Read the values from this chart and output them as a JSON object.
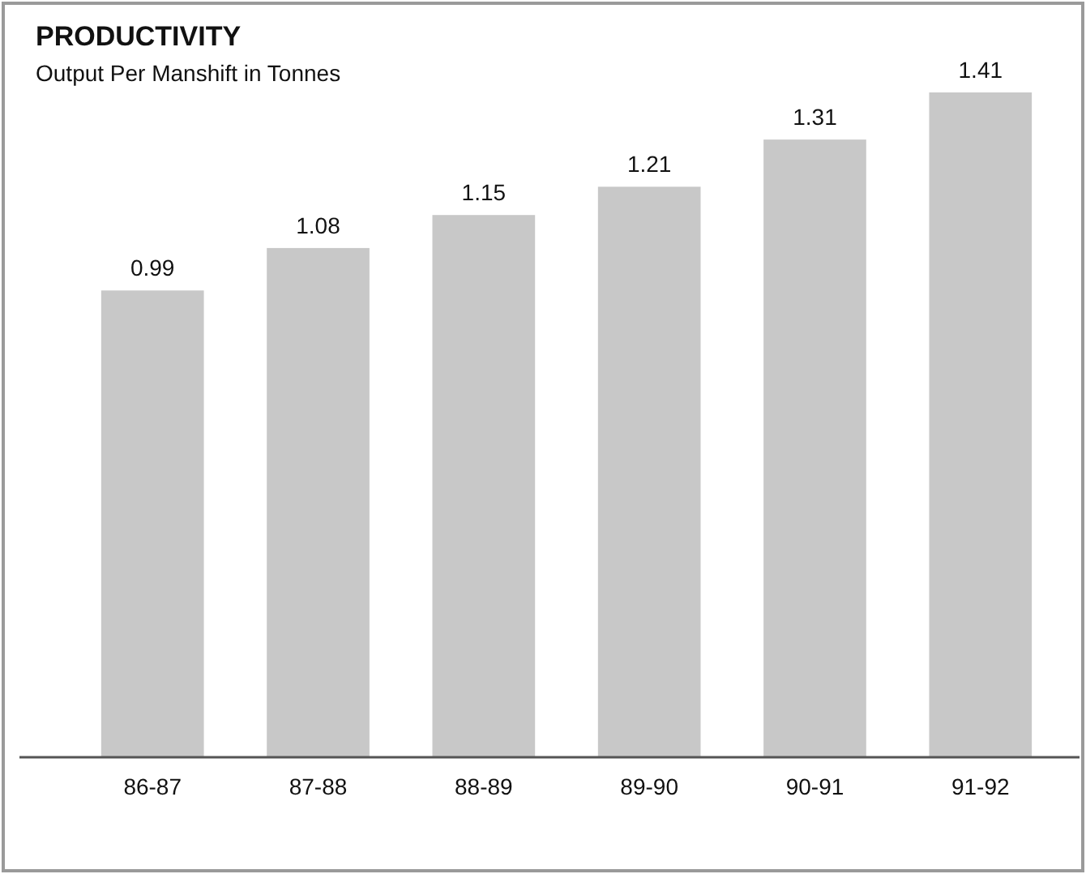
{
  "chart_data": {
    "type": "bar",
    "title": "PRODUCTIVITY",
    "subtitle": "Output Per Manshift in Tonnes",
    "categories": [
      "86-87",
      "87-88",
      "88-89",
      "89-90",
      "90-91",
      "91-92"
    ],
    "values": [
      0.99,
      1.08,
      1.15,
      1.21,
      1.31,
      1.41
    ],
    "color": "#c8c8c8",
    "data_labels": true
  }
}
